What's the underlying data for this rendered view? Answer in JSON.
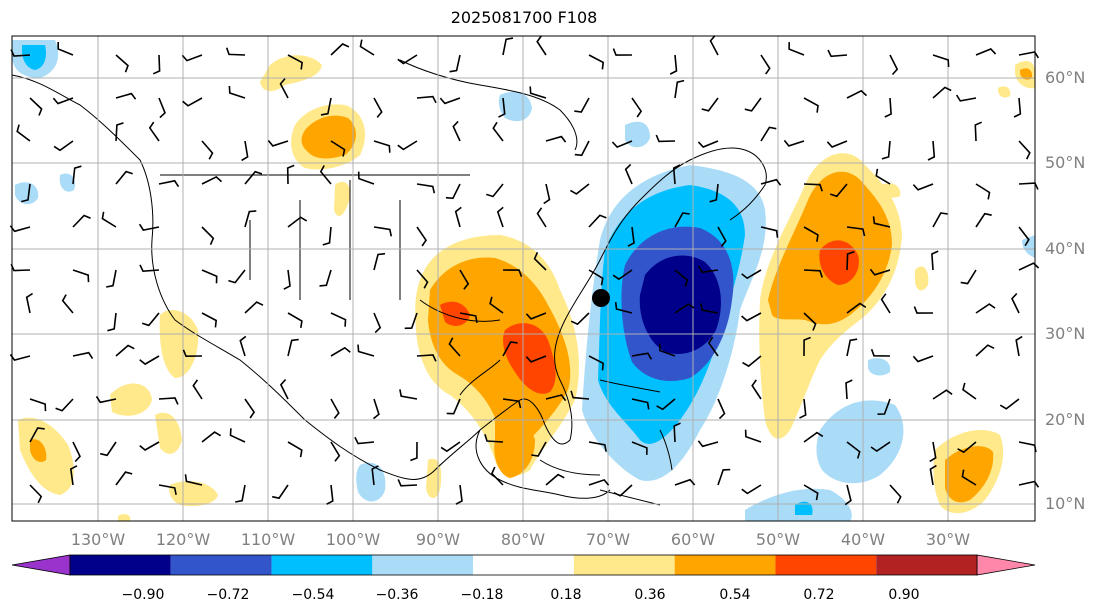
{
  "title": "2025081700 F108",
  "lat_labels": [
    "60°N",
    "50°N",
    "40°N",
    "30°N",
    "20°N",
    "10°N"
  ],
  "lon_labels": [
    "130°W",
    "120°W",
    "110°W",
    "100°W",
    "90°W",
    "80°W",
    "70°W",
    "60°W",
    "50°W",
    "40°W",
    "30°W"
  ],
  "colorbar": {
    "labels": [
      "−0.90",
      "−0.72",
      "−0.54",
      "−0.36",
      "−0.18",
      "0.18",
      "0.36",
      "0.54",
      "0.72",
      "0.90"
    ],
    "colors": [
      "#9933cc",
      "#00008b",
      "#3355cc",
      "#00bfff",
      "#aadcf8",
      "#ffffff",
      "#ffe98a",
      "#ffa500",
      "#ff4500",
      "#b22222",
      "#ff88aa"
    ]
  },
  "storm_marker": "black-dot"
}
